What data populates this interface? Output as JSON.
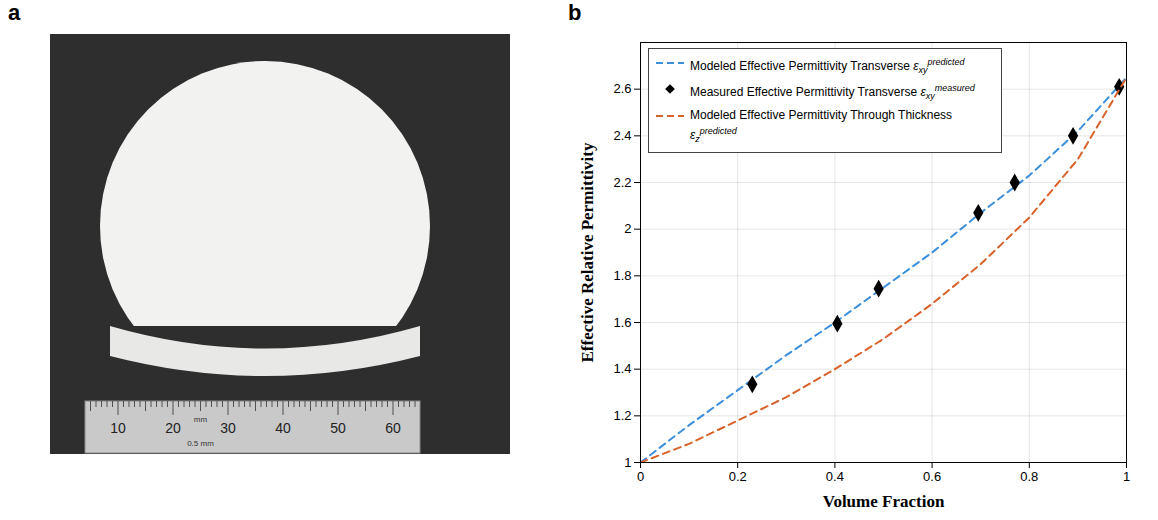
{
  "panel_a": {
    "letter": "a",
    "type": "photo",
    "ruler_labels": [
      10,
      20,
      30,
      40,
      50,
      60
    ],
    "ruler_unit": "mm",
    "ruler_note": "0.5 mm"
  },
  "chart_data": {
    "letter": "b",
    "type": "line",
    "x_label": "Volume Fraction",
    "y_label": "Effective Relative Permittivity",
    "xlim": [
      0,
      1
    ],
    "xticks": [
      0,
      0.2,
      0.4,
      0.6,
      0.8,
      1
    ],
    "ylim": [
      1,
      2.8
    ],
    "yticks": [
      1,
      1.2,
      1.4,
      1.6,
      1.8,
      2,
      2.2,
      2.4,
      2.6
    ],
    "grid": true,
    "legend": "top-left",
    "x": [
      0,
      0.1,
      0.2,
      0.3,
      0.4,
      0.5,
      0.6,
      0.7,
      0.8,
      0.9,
      1
    ],
    "series": [
      {
        "name": "Modeled Effective Permittivity Transverse",
        "symbol": {
          "base": "ε",
          "sub": "xy",
          "sup": "predicted"
        },
        "type": "line",
        "line_style": "dashed",
        "color": "#3d8fd9",
        "values": [
          1.0,
          1.16,
          1.31,
          1.46,
          1.6,
          1.75,
          1.9,
          2.07,
          2.23,
          2.42,
          2.65
        ]
      },
      {
        "name": "Measured Effective Permittivity Transverse",
        "symbol": {
          "base": "ε",
          "sub": "xy",
          "sup": "measured"
        },
        "type": "scatter",
        "marker": "diamond",
        "color": "#000000",
        "x": [
          0.23,
          0.405,
          0.49,
          0.695,
          0.77,
          0.89,
          0.985
        ],
        "values": [
          1.335,
          1.595,
          1.745,
          2.07,
          2.2,
          2.4,
          2.61
        ]
      },
      {
        "name": "Modeled Effective Permittivity Through Thickness",
        "symbol": {
          "base": "ε",
          "sub": "z",
          "sup": "predicted"
        },
        "type": "line",
        "line_style": "dashed",
        "color": "#d9622b",
        "values": [
          1.0,
          1.08,
          1.18,
          1.28,
          1.4,
          1.53,
          1.68,
          1.85,
          2.05,
          2.3,
          2.65
        ]
      }
    ]
  }
}
